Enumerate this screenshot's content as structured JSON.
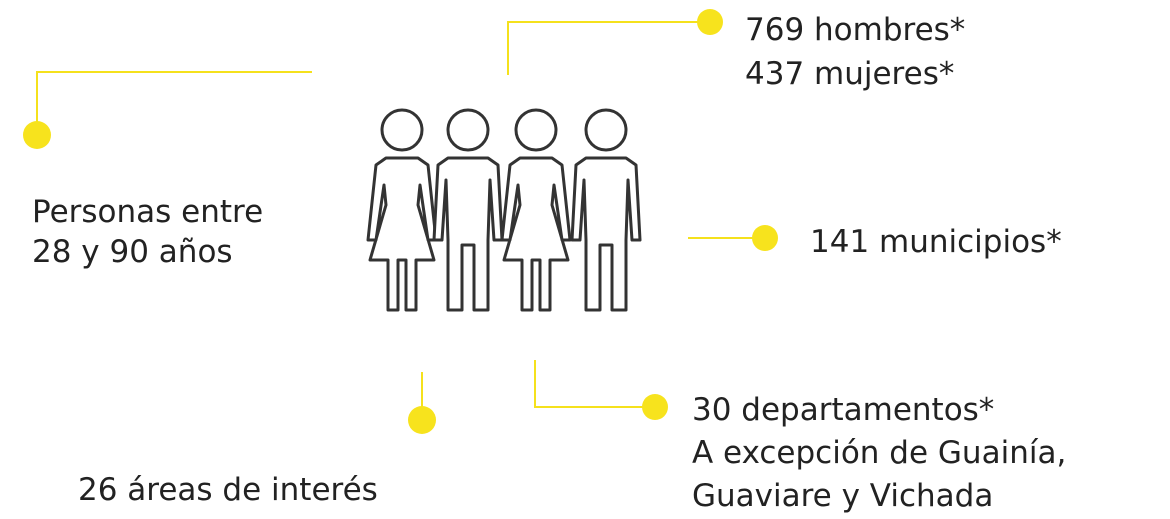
{
  "callouts": [
    {
      "lines": [
        "769 hombres*",
        "437 mujeres*"
      ]
    },
    {
      "lines": [
        "Personas entre",
        "28 y 90 años"
      ]
    },
    {
      "lines": [
        "141 municipios*"
      ]
    },
    {
      "lines": [
        "30 departamentos*",
        "A excepción de Guainía,",
        "Guaviare y Vichada"
      ]
    },
    {
      "lines": [
        "26 áreas de interés"
      ]
    }
  ]
}
